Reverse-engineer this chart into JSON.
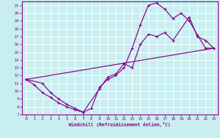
{
  "xlabel": "Windchill (Refroidissement éolien,°C)",
  "bg_color": "#c8eef0",
  "grid_color": "#ffffff",
  "line_color": "#880088",
  "xlim": [
    -0.5,
    23.5
  ],
  "ylim": [
    7,
    21.5
  ],
  "xticks": [
    0,
    1,
    2,
    3,
    4,
    5,
    6,
    7,
    8,
    9,
    10,
    11,
    12,
    13,
    14,
    15,
    16,
    17,
    18,
    19,
    20,
    21,
    22,
    23
  ],
  "yticks": [
    7,
    8,
    9,
    10,
    11,
    12,
    13,
    14,
    15,
    16,
    17,
    18,
    19,
    20,
    21
  ],
  "line1_x": [
    0,
    1,
    2,
    3,
    4,
    5,
    6,
    7,
    8,
    9,
    10,
    11,
    12,
    13,
    14,
    15,
    16,
    17,
    18,
    19,
    20,
    21,
    22,
    23
  ],
  "line1_y": [
    11.5,
    10.8,
    9.8,
    9.2,
    8.5,
    8.0,
    7.6,
    7.3,
    7.8,
    10.5,
    11.5,
    12.0,
    13.0,
    15.5,
    18.5,
    21.0,
    21.3,
    20.5,
    19.3,
    20.0,
    19.0,
    17.2,
    15.5,
    15.5
  ],
  "line2_x": [
    0,
    2,
    3,
    4,
    5,
    6,
    7,
    9,
    10,
    11,
    12,
    13,
    14,
    15,
    16,
    17,
    18,
    20,
    21,
    22,
    23
  ],
  "line2_y": [
    11.5,
    11.0,
    9.8,
    9.0,
    8.3,
    7.8,
    7.3,
    10.3,
    11.8,
    12.2,
    13.5,
    13.0,
    16.0,
    17.3,
    17.0,
    17.5,
    16.5,
    19.5,
    17.0,
    16.5,
    15.5
  ],
  "line3_x": [
    0,
    23
  ],
  "line3_y": [
    11.5,
    15.5
  ],
  "tick_fontsize": 4.2,
  "xlabel_fontsize": 4.8
}
